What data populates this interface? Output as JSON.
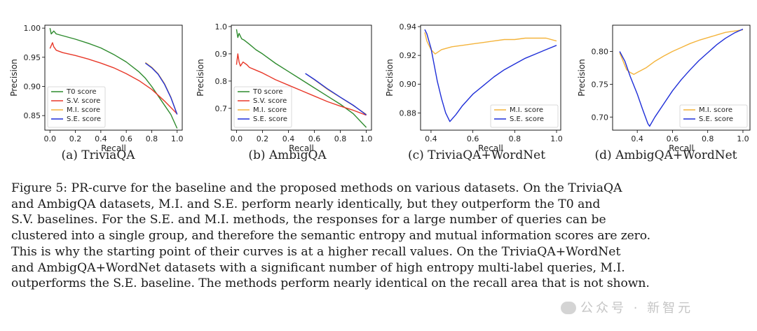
{
  "colors": {
    "t0": "#2e8b2e",
    "sv": "#e8392a",
    "mi": "#f4b43c",
    "se": "#1f2fd8"
  },
  "chart_data": [
    {
      "type": "line",
      "subcaption": "(a) TriviaQA",
      "xlabel": "Recall",
      "ylabel": "Precision",
      "xlim": [
        -0.04,
        1.04
      ],
      "ylim": [
        0.825,
        1.005
      ],
      "xticks": [
        "0.0",
        "0.2",
        "0.4",
        "0.6",
        "0.8",
        "1.0"
      ],
      "xtick_values": [
        0.0,
        0.2,
        0.4,
        0.6,
        0.8,
        1.0
      ],
      "yticks": [
        "0.85",
        "0.90",
        "0.95",
        "1.00"
      ],
      "ytick_values": [
        0.85,
        0.9,
        0.95,
        1.0
      ],
      "legend": "lower-left",
      "series": [
        {
          "name": "T0 score",
          "color_key": "t0",
          "points": [
            [
              0.0,
              1.0
            ],
            [
              0.01,
              0.99
            ],
            [
              0.03,
              0.995
            ],
            [
              0.05,
              0.99
            ],
            [
              0.1,
              0.987
            ],
            [
              0.2,
              0.981
            ],
            [
              0.3,
              0.974
            ],
            [
              0.4,
              0.966
            ],
            [
              0.5,
              0.955
            ],
            [
              0.6,
              0.942
            ],
            [
              0.7,
              0.925
            ],
            [
              0.75,
              0.914
            ],
            [
              0.8,
              0.9
            ],
            [
              0.9,
              0.868
            ],
            [
              0.95,
              0.852
            ],
            [
              1.0,
              0.828
            ]
          ]
        },
        {
          "name": "S.V. score",
          "color_key": "sv",
          "points": [
            [
              0.0,
              0.965
            ],
            [
              0.01,
              0.97
            ],
            [
              0.02,
              0.975
            ],
            [
              0.03,
              0.968
            ],
            [
              0.05,
              0.962
            ],
            [
              0.1,
              0.958
            ],
            [
              0.2,
              0.953
            ],
            [
              0.3,
              0.947
            ],
            [
              0.4,
              0.94
            ],
            [
              0.5,
              0.932
            ],
            [
              0.6,
              0.922
            ],
            [
              0.7,
              0.91
            ],
            [
              0.8,
              0.895
            ],
            [
              0.9,
              0.875
            ],
            [
              1.0,
              0.853
            ]
          ]
        },
        {
          "name": "M.I. score",
          "color_key": "mi",
          "points": [
            [
              0.75,
              0.941
            ],
            [
              0.8,
              0.933
            ],
            [
              0.85,
              0.922
            ],
            [
              0.9,
              0.905
            ],
            [
              0.95,
              0.882
            ],
            [
              1.0,
              0.852
            ]
          ]
        },
        {
          "name": "S.E. score",
          "color_key": "se",
          "points": [
            [
              0.75,
              0.94
            ],
            [
              0.8,
              0.932
            ],
            [
              0.85,
              0.921
            ],
            [
              0.9,
              0.904
            ],
            [
              0.95,
              0.881
            ],
            [
              1.0,
              0.852
            ]
          ]
        }
      ]
    },
    {
      "type": "line",
      "subcaption": "(b) AmbigQA",
      "xlabel": "Recall",
      "ylabel": "Precision",
      "xlim": [
        -0.04,
        1.04
      ],
      "ylim": [
        0.62,
        1.005
      ],
      "xticks": [
        "0.0",
        "0.2",
        "0.4",
        "0.6",
        "0.8",
        "1.0"
      ],
      "xtick_values": [
        0.0,
        0.2,
        0.4,
        0.6,
        0.8,
        1.0
      ],
      "yticks": [
        "0.7",
        "0.8",
        "0.9",
        "1.0"
      ],
      "ytick_values": [
        0.7,
        0.8,
        0.9,
        1.0
      ],
      "legend": "lower-left",
      "series": [
        {
          "name": "T0 score",
          "color_key": "t0",
          "points": [
            [
              0.0,
              0.99
            ],
            [
              0.01,
              0.96
            ],
            [
              0.02,
              0.975
            ],
            [
              0.04,
              0.955
            ],
            [
              0.06,
              0.95
            ],
            [
              0.1,
              0.935
            ],
            [
              0.15,
              0.915
            ],
            [
              0.2,
              0.9
            ],
            [
              0.3,
              0.865
            ],
            [
              0.4,
              0.835
            ],
            [
              0.5,
              0.805
            ],
            [
              0.6,
              0.775
            ],
            [
              0.7,
              0.745
            ],
            [
              0.8,
              0.715
            ],
            [
              0.9,
              0.68
            ],
            [
              1.0,
              0.63
            ]
          ]
        },
        {
          "name": "S.V. score",
          "color_key": "sv",
          "points": [
            [
              0.0,
              0.86
            ],
            [
              0.01,
              0.9
            ],
            [
              0.02,
              0.87
            ],
            [
              0.03,
              0.855
            ],
            [
              0.05,
              0.87
            ],
            [
              0.08,
              0.86
            ],
            [
              0.1,
              0.85
            ],
            [
              0.15,
              0.84
            ],
            [
              0.2,
              0.83
            ],
            [
              0.3,
              0.805
            ],
            [
              0.4,
              0.785
            ],
            [
              0.5,
              0.765
            ],
            [
              0.6,
              0.745
            ],
            [
              0.7,
              0.725
            ],
            [
              0.8,
              0.708
            ],
            [
              0.9,
              0.693
            ],
            [
              1.0,
              0.675
            ]
          ]
        },
        {
          "name": "M.I. score",
          "color_key": "mi",
          "points": [
            [
              0.54,
              0.825
            ],
            [
              0.6,
              0.805
            ],
            [
              0.7,
              0.77
            ],
            [
              0.8,
              0.74
            ],
            [
              0.9,
              0.71
            ],
            [
              1.0,
              0.678
            ]
          ]
        },
        {
          "name": "S.E. score",
          "color_key": "se",
          "points": [
            [
              0.53,
              0.828
            ],
            [
              0.6,
              0.806
            ],
            [
              0.7,
              0.772
            ],
            [
              0.8,
              0.741
            ],
            [
              0.9,
              0.711
            ],
            [
              1.0,
              0.676
            ]
          ]
        }
      ]
    },
    {
      "type": "line",
      "subcaption": "(c) TriviaQA+WordNet",
      "xlabel": "Recall",
      "ylabel": "Precision",
      "xlim": [
        0.35,
        1.02
      ],
      "ylim": [
        0.868,
        0.941
      ],
      "xticks": [
        "0.4",
        "0.6",
        "0.8",
        "1.0"
      ],
      "xtick_values": [
        0.4,
        0.6,
        0.8,
        1.0
      ],
      "yticks": [
        "0.88",
        "0.90",
        "0.92",
        "0.94"
      ],
      "ytick_values": [
        0.88,
        0.9,
        0.92,
        0.94
      ],
      "legend": "lower-right",
      "series": [
        {
          "name": "M.I. score",
          "color_key": "mi",
          "points": [
            [
              0.37,
              0.936
            ],
            [
              0.38,
              0.93
            ],
            [
              0.4,
              0.924
            ],
            [
              0.42,
              0.921
            ],
            [
              0.45,
              0.924
            ],
            [
              0.5,
              0.926
            ],
            [
              0.55,
              0.927
            ],
            [
              0.6,
              0.928
            ],
            [
              0.65,
              0.929
            ],
            [
              0.7,
              0.93
            ],
            [
              0.75,
              0.931
            ],
            [
              0.8,
              0.931
            ],
            [
              0.85,
              0.932
            ],
            [
              0.9,
              0.932
            ],
            [
              0.95,
              0.932
            ],
            [
              1.0,
              0.93
            ]
          ]
        },
        {
          "name": "S.E. score",
          "color_key": "se",
          "points": [
            [
              0.37,
              0.938
            ],
            [
              0.38,
              0.935
            ],
            [
              0.4,
              0.925
            ],
            [
              0.43,
              0.902
            ],
            [
              0.45,
              0.89
            ],
            [
              0.47,
              0.88
            ],
            [
              0.49,
              0.874
            ],
            [
              0.52,
              0.879
            ],
            [
              0.55,
              0.885
            ],
            [
              0.6,
              0.893
            ],
            [
              0.65,
              0.899
            ],
            [
              0.7,
              0.905
            ],
            [
              0.75,
              0.91
            ],
            [
              0.8,
              0.914
            ],
            [
              0.85,
              0.918
            ],
            [
              0.9,
              0.921
            ],
            [
              0.95,
              0.924
            ],
            [
              1.0,
              0.927
            ]
          ]
        }
      ]
    },
    {
      "type": "line",
      "subcaption": "(d) AmbigQA+WordNet",
      "xlabel": "Recall",
      "ylabel": "Precision",
      "xlim": [
        0.26,
        1.04
      ],
      "ylim": [
        0.68,
        0.84
      ],
      "xticks": [
        "0.4",
        "0.6",
        "0.8",
        "1.0"
      ],
      "xtick_values": [
        0.4,
        0.6,
        0.8,
        1.0
      ],
      "yticks": [
        "0.70",
        "0.75",
        "0.80"
      ],
      "ytick_values": [
        0.7,
        0.75,
        0.8
      ],
      "legend": "lower-right",
      "series": [
        {
          "name": "M.I. score",
          "color_key": "mi",
          "points": [
            [
              0.3,
              0.798
            ],
            [
              0.32,
              0.785
            ],
            [
              0.34,
              0.772
            ],
            [
              0.36,
              0.768
            ],
            [
              0.38,
              0.765
            ],
            [
              0.4,
              0.768
            ],
            [
              0.45,
              0.775
            ],
            [
              0.5,
              0.785
            ],
            [
              0.55,
              0.793
            ],
            [
              0.6,
              0.8
            ],
            [
              0.65,
              0.806
            ],
            [
              0.7,
              0.812
            ],
            [
              0.75,
              0.817
            ],
            [
              0.8,
              0.821
            ],
            [
              0.85,
              0.825
            ],
            [
              0.9,
              0.829
            ],
            [
              0.95,
              0.831
            ],
            [
              1.0,
              0.833
            ]
          ]
        },
        {
          "name": "S.E. score",
          "color_key": "se",
          "points": [
            [
              0.3,
              0.8
            ],
            [
              0.33,
              0.785
            ],
            [
              0.36,
              0.762
            ],
            [
              0.4,
              0.735
            ],
            [
              0.43,
              0.712
            ],
            [
              0.46,
              0.69
            ],
            [
              0.47,
              0.686
            ],
            [
              0.5,
              0.7
            ],
            [
              0.55,
              0.72
            ],
            [
              0.6,
              0.74
            ],
            [
              0.65,
              0.757
            ],
            [
              0.7,
              0.772
            ],
            [
              0.75,
              0.786
            ],
            [
              0.8,
              0.798
            ],
            [
              0.85,
              0.81
            ],
            [
              0.9,
              0.82
            ],
            [
              0.95,
              0.828
            ],
            [
              1.0,
              0.834
            ]
          ]
        }
      ]
    }
  ],
  "caption": {
    "lines": [
      "Figure 5: PR-curve for the baseline and the proposed methods on various datasets. On the TriviaQA",
      "and AmbigQA datasets, M.I. and S.E. perform nearly identically, but they outperform the T0 and",
      "S.V. baselines. For the S.E. and M.I. methods, the responses for a large number of queries can be",
      "clustered into a single group, and therefore the semantic entropy and mutual information scores are zero.",
      "This is why the starting point of their curves is at a higher recall values. On the TriviaQA+WordNet",
      "and AmbigQA+WordNet datasets with a significant number of high entropy multi-label queries, M.I.",
      "outperforms the S.E. baseline. The methods perform nearly identical on the recall area that is not shown."
    ]
  },
  "watermark": "公众号 · 新智元"
}
